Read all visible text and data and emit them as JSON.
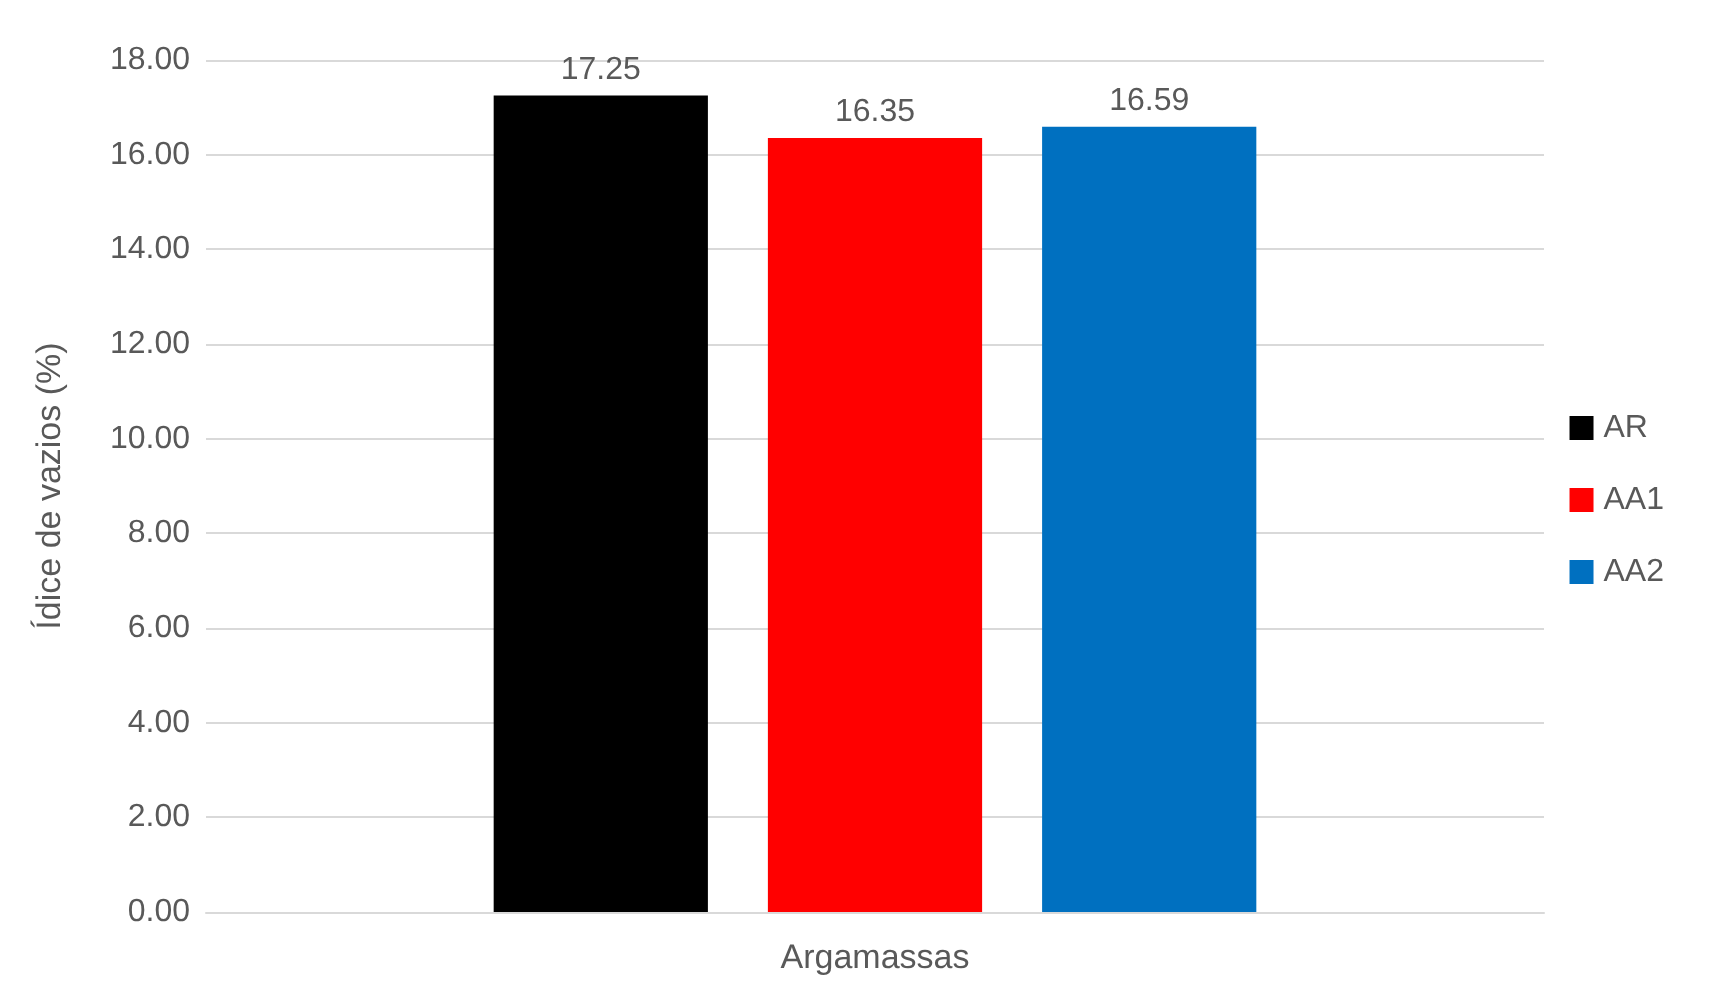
{
  "chart_data": {
    "type": "bar",
    "xlabel": "Argamassas",
    "ylabel": "Ídice de vazios (%)",
    "categories": [
      null
    ],
    "series": [
      {
        "name": "AR",
        "color": "#000000",
        "values": [
          17.25
        ]
      },
      {
        "name": "AA1",
        "color": "#ff0000",
        "values": [
          16.35
        ]
      },
      {
        "name": "AA2",
        "color": "#0070c0",
        "values": [
          16.59
        ]
      }
    ],
    "ylim": [
      0,
      18
    ],
    "yticks": [
      {
        "value": 0,
        "label": "0.00"
      },
      {
        "value": 2,
        "label": "2.00"
      },
      {
        "value": 4,
        "label": "4.00"
      },
      {
        "value": 6,
        "label": "6.00"
      },
      {
        "value": 8,
        "label": "8.00"
      },
      {
        "value": 10,
        "label": "10.00"
      },
      {
        "value": 12,
        "label": "12.00"
      },
      {
        "value": 14,
        "label": "14.00"
      },
      {
        "value": 16,
        "label": "16.00"
      },
      {
        "value": 18,
        "label": "18.00"
      }
    ],
    "grid": "y",
    "legend": "right",
    "data_labels": true
  }
}
